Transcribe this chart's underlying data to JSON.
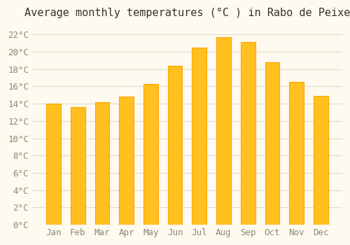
{
  "title": "Average monthly temperatures (°C ) in Rabo de Peixe",
  "months": [
    "Jan",
    "Feb",
    "Mar",
    "Apr",
    "May",
    "Jun",
    "Jul",
    "Aug",
    "Sep",
    "Oct",
    "Nov",
    "Dec"
  ],
  "values": [
    14.0,
    13.6,
    14.2,
    14.8,
    16.3,
    18.4,
    20.5,
    21.7,
    21.1,
    18.8,
    16.5,
    14.9
  ],
  "bar_color_main": "#FFC020",
  "bar_color_edge": "#FFA500",
  "background_color": "#FFFAEF",
  "grid_color": "#DDDDCC",
  "text_color": "#888877",
  "ylim": [
    0,
    23
  ],
  "yticks": [
    0,
    2,
    4,
    6,
    8,
    10,
    12,
    14,
    16,
    18,
    20,
    22
  ],
  "title_fontsize": 11,
  "tick_fontsize": 9,
  "font_family": "monospace"
}
